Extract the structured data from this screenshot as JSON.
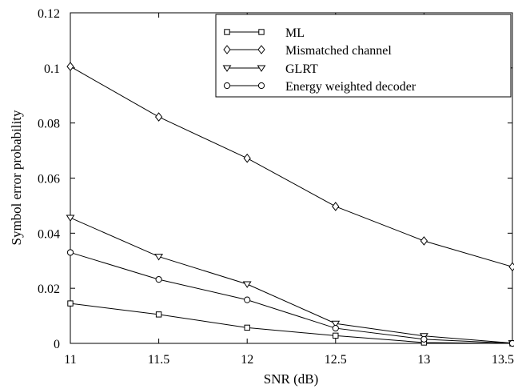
{
  "chart_data": {
    "type": "line",
    "title": "",
    "xlabel": "SNR (dB)",
    "ylabel": "Symbol error probability",
    "x": [
      11,
      11.5,
      12,
      12.5,
      13,
      13.5
    ],
    "xlim": [
      11,
      13.5
    ],
    "ylim": [
      0,
      0.12
    ],
    "x_ticks": [
      "11",
      "11.5",
      "12",
      "12.5",
      "13",
      "13.5"
    ],
    "y_ticks": [
      "0",
      "0.02",
      "0.04",
      "0.06",
      "0.08",
      "0.1",
      "0.12"
    ],
    "grid": false,
    "legend_position": "top-right",
    "series": [
      {
        "name": "ML",
        "marker": "square",
        "values": [
          0.0145,
          0.0105,
          0.0057,
          0.0028,
          0.0003,
          0.0
        ]
      },
      {
        "name": "Mismatched channel",
        "marker": "diamond",
        "values": [
          0.1005,
          0.0822,
          0.0672,
          0.0497,
          0.0372,
          0.0278
        ]
      },
      {
        "name": "GLRT",
        "marker": "triangle-down",
        "values": [
          0.0456,
          0.0315,
          0.0215,
          0.0072,
          0.0027,
          0.0001
        ]
      },
      {
        "name": "Energy weighted decoder",
        "marker": "circle",
        "values": [
          0.033,
          0.0232,
          0.0158,
          0.0055,
          0.0015,
          0.0
        ]
      }
    ]
  }
}
